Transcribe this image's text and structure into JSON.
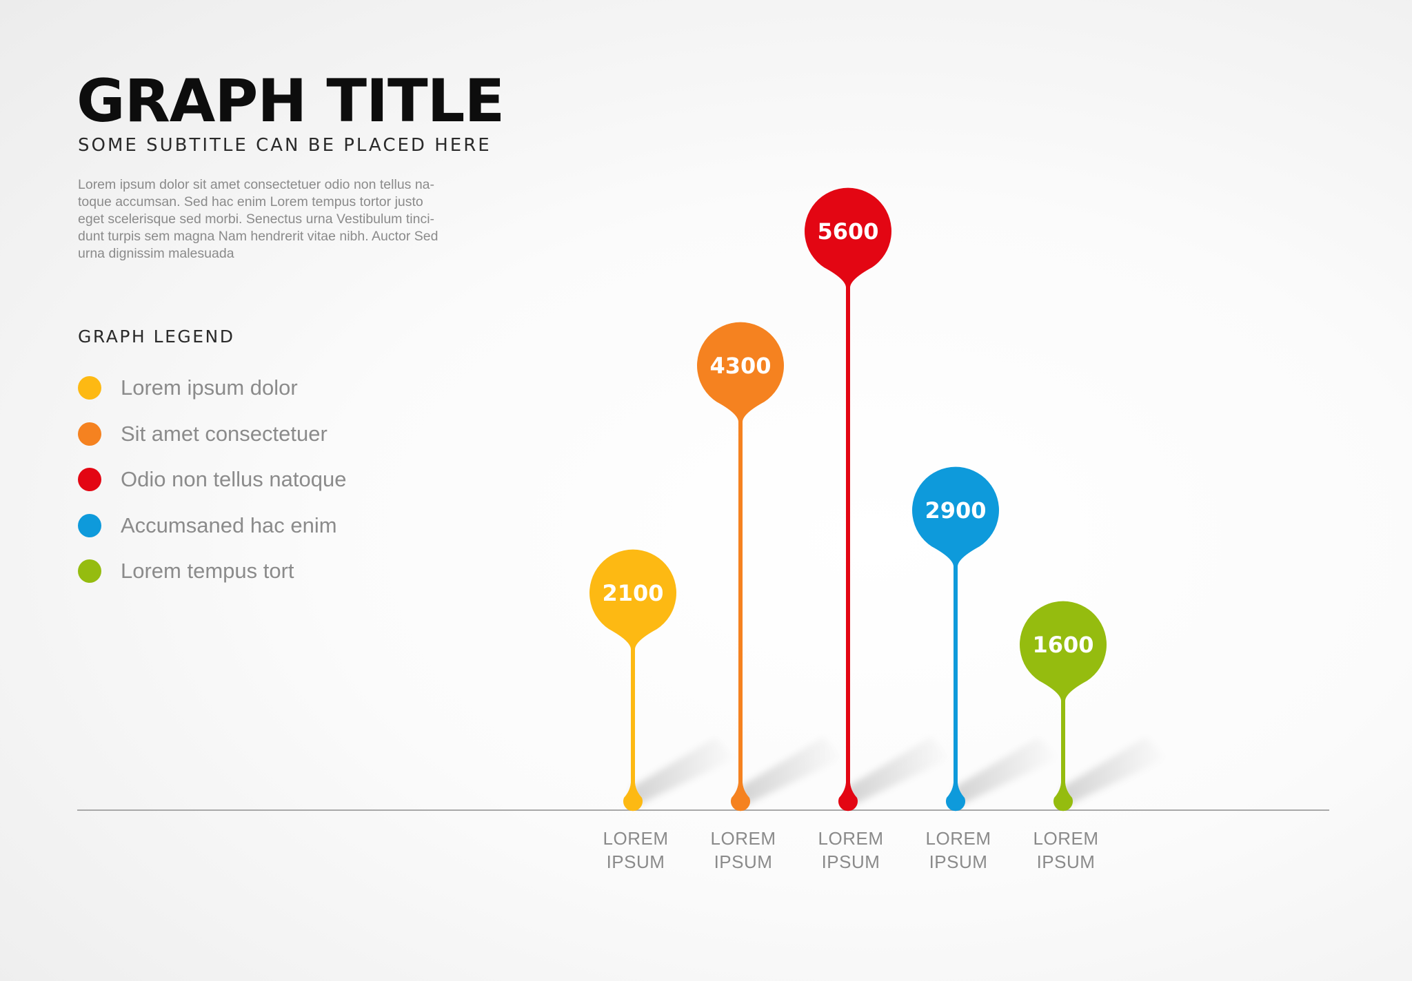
{
  "header": {
    "title": "GRAPH TITLE",
    "subtitle": "SOME SUBTITLE CAN BE PLACED HERE",
    "body": "Lorem ipsum dolor sit amet consectetuer odio non tellus na-\ntoque accumsan. Sed hac enim Lorem tempus tortor justo\neget scelerisque sed morbi. Senectus urna Vestibulum tinci-\ndunt turpis sem magna Nam hendrerit vitae nibh. Auctor Sed\nurna dignissim malesuada"
  },
  "legend": {
    "title": "GRAPH LEGEND",
    "items": [
      {
        "label": "Lorem ipsum dolor",
        "color": "#FDB913"
      },
      {
        "label": "Sit amet consectetuer",
        "color": "#F58220"
      },
      {
        "label": "Odio non tellus natoque",
        "color": "#E30613"
      },
      {
        "label": "Accumsaned hac enim",
        "color": "#0E9ADB"
      },
      {
        "label": "Lorem tempus tort",
        "color": "#95BC0F"
      }
    ]
  },
  "chart_data": {
    "type": "bar",
    "style": "lollipop",
    "categories": [
      "LOREM\nIPSUM",
      "LOREM\nIPSUM",
      "LOREM\nIPSUM",
      "LOREM\nIPSUM",
      "LOREM\nIPSUM"
    ],
    "values": [
      2100,
      4300,
      5600,
      2900,
      1600
    ],
    "colors": [
      "#FDB913",
      "#F58220",
      "#E30613",
      "#0E9ADB",
      "#95BC0F"
    ],
    "data_labels": [
      "2100",
      "4300",
      "5600",
      "2900",
      "1600"
    ],
    "ylim": [
      0,
      6000
    ],
    "grid": false,
    "title": "GRAPH TITLE",
    "xlabel": "",
    "ylabel": ""
  }
}
